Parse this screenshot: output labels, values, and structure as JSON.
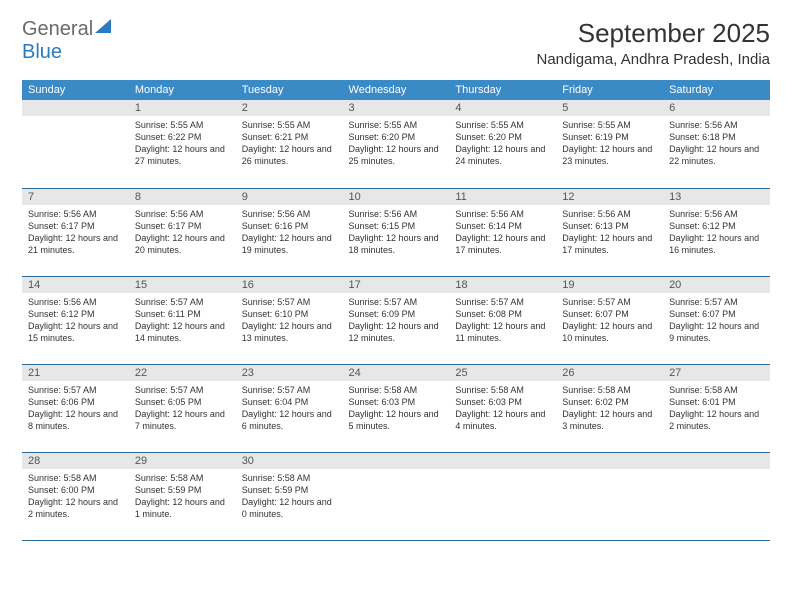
{
  "logo": {
    "line1": "General",
    "line2": "Blue"
  },
  "title": "September 2025",
  "location": "Nandigama, Andhra Pradesh, India",
  "colors": {
    "header_bg": "#3a8ac6",
    "header_text": "#ffffff",
    "daynum_bg": "#e7e7e7",
    "row_border": "#2a6aa3",
    "logo_gray": "#6a6a6a",
    "logo_blue": "#2a7bbf"
  },
  "weekdays": [
    "Sunday",
    "Monday",
    "Tuesday",
    "Wednesday",
    "Thursday",
    "Friday",
    "Saturday"
  ],
  "weeks": [
    [
      null,
      {
        "n": "1",
        "sr": "Sunrise: 5:55 AM",
        "ss": "Sunset: 6:22 PM",
        "dl": "Daylight: 12 hours and 27 minutes."
      },
      {
        "n": "2",
        "sr": "Sunrise: 5:55 AM",
        "ss": "Sunset: 6:21 PM",
        "dl": "Daylight: 12 hours and 26 minutes."
      },
      {
        "n": "3",
        "sr": "Sunrise: 5:55 AM",
        "ss": "Sunset: 6:20 PM",
        "dl": "Daylight: 12 hours and 25 minutes."
      },
      {
        "n": "4",
        "sr": "Sunrise: 5:55 AM",
        "ss": "Sunset: 6:20 PM",
        "dl": "Daylight: 12 hours and 24 minutes."
      },
      {
        "n": "5",
        "sr": "Sunrise: 5:55 AM",
        "ss": "Sunset: 6:19 PM",
        "dl": "Daylight: 12 hours and 23 minutes."
      },
      {
        "n": "6",
        "sr": "Sunrise: 5:56 AM",
        "ss": "Sunset: 6:18 PM",
        "dl": "Daylight: 12 hours and 22 minutes."
      }
    ],
    [
      {
        "n": "7",
        "sr": "Sunrise: 5:56 AM",
        "ss": "Sunset: 6:17 PM",
        "dl": "Daylight: 12 hours and 21 minutes."
      },
      {
        "n": "8",
        "sr": "Sunrise: 5:56 AM",
        "ss": "Sunset: 6:17 PM",
        "dl": "Daylight: 12 hours and 20 minutes."
      },
      {
        "n": "9",
        "sr": "Sunrise: 5:56 AM",
        "ss": "Sunset: 6:16 PM",
        "dl": "Daylight: 12 hours and 19 minutes."
      },
      {
        "n": "10",
        "sr": "Sunrise: 5:56 AM",
        "ss": "Sunset: 6:15 PM",
        "dl": "Daylight: 12 hours and 18 minutes."
      },
      {
        "n": "11",
        "sr": "Sunrise: 5:56 AM",
        "ss": "Sunset: 6:14 PM",
        "dl": "Daylight: 12 hours and 17 minutes."
      },
      {
        "n": "12",
        "sr": "Sunrise: 5:56 AM",
        "ss": "Sunset: 6:13 PM",
        "dl": "Daylight: 12 hours and 17 minutes."
      },
      {
        "n": "13",
        "sr": "Sunrise: 5:56 AM",
        "ss": "Sunset: 6:12 PM",
        "dl": "Daylight: 12 hours and 16 minutes."
      }
    ],
    [
      {
        "n": "14",
        "sr": "Sunrise: 5:56 AM",
        "ss": "Sunset: 6:12 PM",
        "dl": "Daylight: 12 hours and 15 minutes."
      },
      {
        "n": "15",
        "sr": "Sunrise: 5:57 AM",
        "ss": "Sunset: 6:11 PM",
        "dl": "Daylight: 12 hours and 14 minutes."
      },
      {
        "n": "16",
        "sr": "Sunrise: 5:57 AM",
        "ss": "Sunset: 6:10 PM",
        "dl": "Daylight: 12 hours and 13 minutes."
      },
      {
        "n": "17",
        "sr": "Sunrise: 5:57 AM",
        "ss": "Sunset: 6:09 PM",
        "dl": "Daylight: 12 hours and 12 minutes."
      },
      {
        "n": "18",
        "sr": "Sunrise: 5:57 AM",
        "ss": "Sunset: 6:08 PM",
        "dl": "Daylight: 12 hours and 11 minutes."
      },
      {
        "n": "19",
        "sr": "Sunrise: 5:57 AM",
        "ss": "Sunset: 6:07 PM",
        "dl": "Daylight: 12 hours and 10 minutes."
      },
      {
        "n": "20",
        "sr": "Sunrise: 5:57 AM",
        "ss": "Sunset: 6:07 PM",
        "dl": "Daylight: 12 hours and 9 minutes."
      }
    ],
    [
      {
        "n": "21",
        "sr": "Sunrise: 5:57 AM",
        "ss": "Sunset: 6:06 PM",
        "dl": "Daylight: 12 hours and 8 minutes."
      },
      {
        "n": "22",
        "sr": "Sunrise: 5:57 AM",
        "ss": "Sunset: 6:05 PM",
        "dl": "Daylight: 12 hours and 7 minutes."
      },
      {
        "n": "23",
        "sr": "Sunrise: 5:57 AM",
        "ss": "Sunset: 6:04 PM",
        "dl": "Daylight: 12 hours and 6 minutes."
      },
      {
        "n": "24",
        "sr": "Sunrise: 5:58 AM",
        "ss": "Sunset: 6:03 PM",
        "dl": "Daylight: 12 hours and 5 minutes."
      },
      {
        "n": "25",
        "sr": "Sunrise: 5:58 AM",
        "ss": "Sunset: 6:03 PM",
        "dl": "Daylight: 12 hours and 4 minutes."
      },
      {
        "n": "26",
        "sr": "Sunrise: 5:58 AM",
        "ss": "Sunset: 6:02 PM",
        "dl": "Daylight: 12 hours and 3 minutes."
      },
      {
        "n": "27",
        "sr": "Sunrise: 5:58 AM",
        "ss": "Sunset: 6:01 PM",
        "dl": "Daylight: 12 hours and 2 minutes."
      }
    ],
    [
      {
        "n": "28",
        "sr": "Sunrise: 5:58 AM",
        "ss": "Sunset: 6:00 PM",
        "dl": "Daylight: 12 hours and 2 minutes."
      },
      {
        "n": "29",
        "sr": "Sunrise: 5:58 AM",
        "ss": "Sunset: 5:59 PM",
        "dl": "Daylight: 12 hours and 1 minute."
      },
      {
        "n": "30",
        "sr": "Sunrise: 5:58 AM",
        "ss": "Sunset: 5:59 PM",
        "dl": "Daylight: 12 hours and 0 minutes."
      },
      null,
      null,
      null,
      null
    ]
  ]
}
